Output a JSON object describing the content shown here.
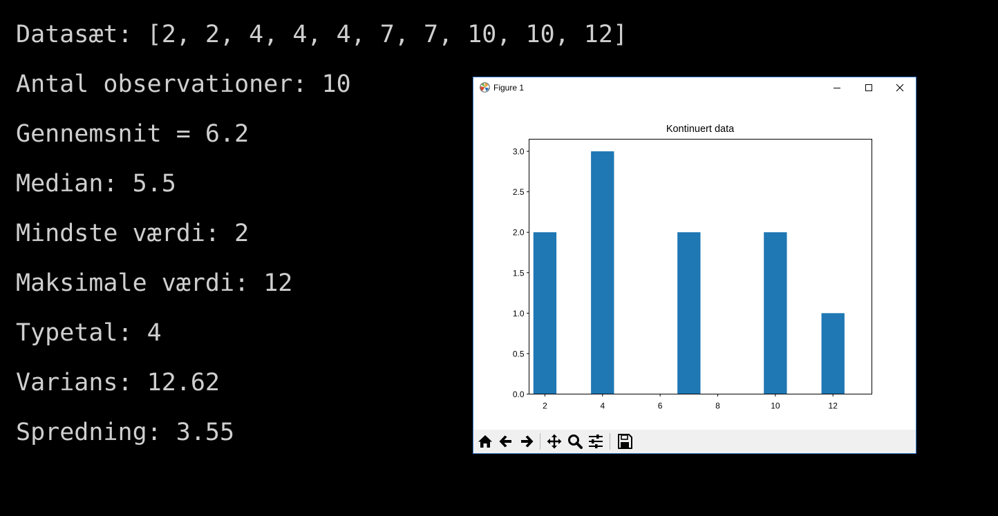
{
  "console": {
    "lines": [
      "Datasæt: [2, 2, 4, 4, 4, 7, 7, 10, 10, 12]",
      "Antal observationer: 10",
      "Gennemsnit = 6.2",
      "Median: 5.5",
      "Mindste værdi: 2",
      "Maksimale værdi: 12",
      "Typetal: 4",
      "Varians: 12.62",
      "Spredning: 3.55"
    ],
    "text_color": "#cfcfcf",
    "background": "#000000"
  },
  "window": {
    "title": "Figure 1",
    "icon": "matplotlib-icon",
    "controls": [
      "minimize-icon",
      "maximize-icon",
      "close-icon"
    ]
  },
  "toolbar": {
    "tools": [
      "home-icon",
      "back-arrow-icon",
      "forward-arrow-icon",
      "pan-icon",
      "zoom-icon",
      "configure-subplots-icon",
      "save-icon"
    ]
  },
  "chart_data": {
    "type": "bar",
    "title": "Kontinuert data",
    "xlabel": "",
    "ylabel": "",
    "x": [
      2,
      4,
      7,
      10,
      12
    ],
    "values": [
      2,
      3,
      2,
      2,
      1
    ],
    "bar_width": 0.8,
    "xlim": [
      1.45,
      13.35
    ],
    "ylim": [
      0,
      3.15
    ],
    "xticks": [
      2,
      4,
      6,
      8,
      10,
      12
    ],
    "xtick_labels": [
      "2",
      "4",
      "6",
      "8",
      "10",
      "12"
    ],
    "yticks": [
      0,
      0.5,
      1,
      1.5,
      2,
      2.5,
      3
    ],
    "ytick_labels": [
      "0.0",
      "0.5",
      "1.0",
      "1.5",
      "2.0",
      "2.5",
      "3.0"
    ],
    "bar_color": "#1f77b4",
    "grid": false
  }
}
